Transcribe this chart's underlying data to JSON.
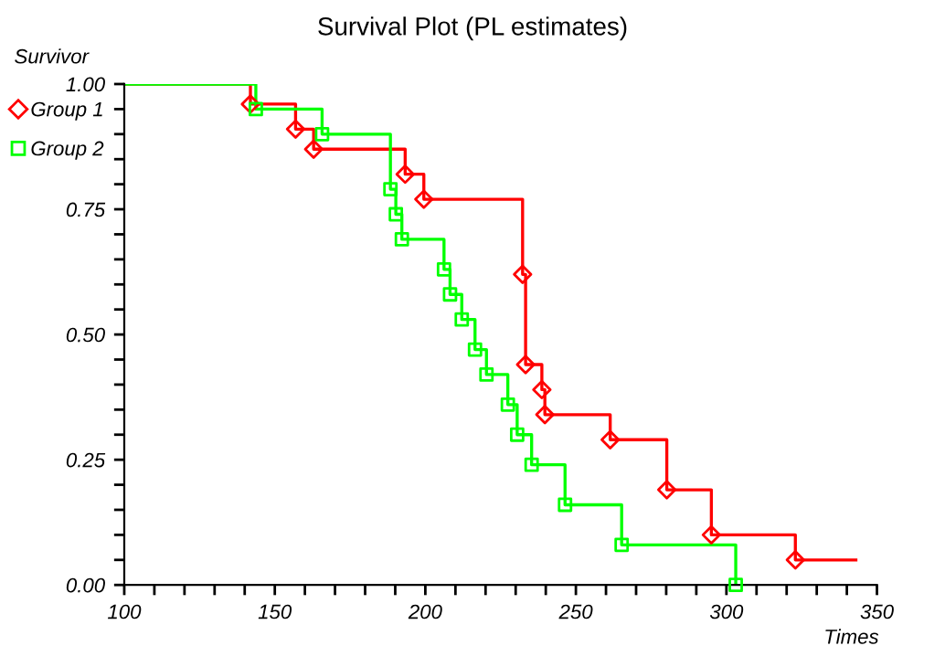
{
  "chart_data": {
    "type": "step",
    "title": "Survival Plot (PL estimates)",
    "xlabel": "Times",
    "ylabel": "Survivor",
    "xlim": [
      100,
      350
    ],
    "ylim": [
      0,
      1
    ],
    "xticks": [
      100,
      {
        "value": 110,
        "label": null
      },
      {
        "value": 120,
        "label": null
      },
      {
        "value": 130,
        "label": null
      },
      {
        "value": 140,
        "label": null
      },
      150,
      {
        "value": 160,
        "label": null
      },
      {
        "value": 170,
        "label": null
      },
      {
        "value": 180,
        "label": null
      },
      {
        "value": 190,
        "label": null
      },
      200,
      {
        "value": 210,
        "label": null
      },
      {
        "value": 220,
        "label": null
      },
      {
        "value": 230,
        "label": null
      },
      {
        "value": 240,
        "label": null
      },
      250,
      {
        "value": 260,
        "label": null
      },
      {
        "value": 270,
        "label": null
      },
      {
        "value": 280,
        "label": null
      },
      {
        "value": 290,
        "label": null
      },
      300,
      {
        "value": 310,
        "label": null
      },
      {
        "value": 320,
        "label": null
      },
      {
        "value": 330,
        "label": null
      },
      {
        "value": 340,
        "label": null
      },
      350
    ],
    "yticks": [
      {
        "value": 0,
        "label": "0.00"
      },
      {
        "value": 0.05,
        "label": null
      },
      {
        "value": 0.1,
        "label": null
      },
      {
        "value": 0.15,
        "label": null
      },
      {
        "value": 0.2,
        "label": null
      },
      {
        "value": 0.25,
        "label": "0.25"
      },
      {
        "value": 0.3,
        "label": null
      },
      {
        "value": 0.35,
        "label": null
      },
      {
        "value": 0.4,
        "label": null
      },
      {
        "value": 0.45,
        "label": null
      },
      {
        "value": 0.5,
        "label": "0.50"
      },
      {
        "value": 0.55,
        "label": null
      },
      {
        "value": 0.6,
        "label": null
      },
      {
        "value": 0.65,
        "label": null
      },
      {
        "value": 0.7,
        "label": null
      },
      {
        "value": 0.75,
        "label": "0.75"
      },
      {
        "value": 0.8,
        "label": null
      },
      {
        "value": 0.85,
        "label": null
      },
      {
        "value": 0.9,
        "label": null
      },
      {
        "value": 0.95,
        "label": null
      },
      {
        "value": 1,
        "label": "1.00"
      }
    ],
    "grid": false,
    "legend": "left",
    "series": [
      {
        "color": "#ff0000",
        "x": [
          100,
          141.9,
          156.9,
          162.9,
          193.3,
          199.5,
          232.3,
          233.3,
          238.7,
          239.7,
          261.4,
          280.2,
          295,
          322.9,
          343
        ],
        "values": [
          1,
          0.96,
          0.91,
          0.87,
          0.82,
          0.77,
          0.62,
          0.44,
          0.39,
          0.34,
          0.29,
          0.19,
          0.1,
          0.05,
          0.05
        ]
      },
      {
        "color": "#00ff00",
        "x": [
          100,
          143.7,
          165.7,
          188.4,
          190.2,
          192.2,
          206.2,
          208.2,
          212.1,
          216.5,
          220.3,
          227.4,
          230.5,
          235.3,
          246.4,
          265.2,
          303.1
        ],
        "values": [
          1,
          0.95,
          0.9,
          0.79,
          0.74,
          0.69,
          0.63,
          0.58,
          0.53,
          0.47,
          0.42,
          0.36,
          0.3,
          0.24,
          0.16,
          0.08,
          0
        ]
      },
      {
        "type": "scatter",
        "name": "Group 1",
        "color": "#ff0000",
        "marker": "diamond",
        "x": [
          141.9,
          156.9,
          162.9,
          193.3,
          199.5,
          232.3,
          233.3,
          238.7,
          239.7,
          261.4,
          280.2,
          295,
          322.9
        ],
        "values": [
          0.96,
          0.91,
          0.87,
          0.82,
          0.77,
          0.62,
          0.44,
          0.39,
          0.34,
          0.29,
          0.19,
          0.1,
          0.05
        ]
      },
      {
        "type": "scatter",
        "name": "Group 2",
        "color": "#00ff00",
        "marker": "square",
        "x": [
          143.7,
          165.7,
          188.4,
          190.2,
          192.2,
          206.2,
          208.2,
          212.1,
          216.5,
          220.3,
          227.4,
          230.5,
          235.3,
          246.4,
          265.2,
          303.1
        ],
        "values": [
          0.95,
          0.9,
          0.79,
          0.74,
          0.69,
          0.63,
          0.58,
          0.53,
          0.47,
          0.42,
          0.36,
          0.3,
          0.24,
          0.16,
          0.08,
          0
        ]
      }
    ]
  }
}
